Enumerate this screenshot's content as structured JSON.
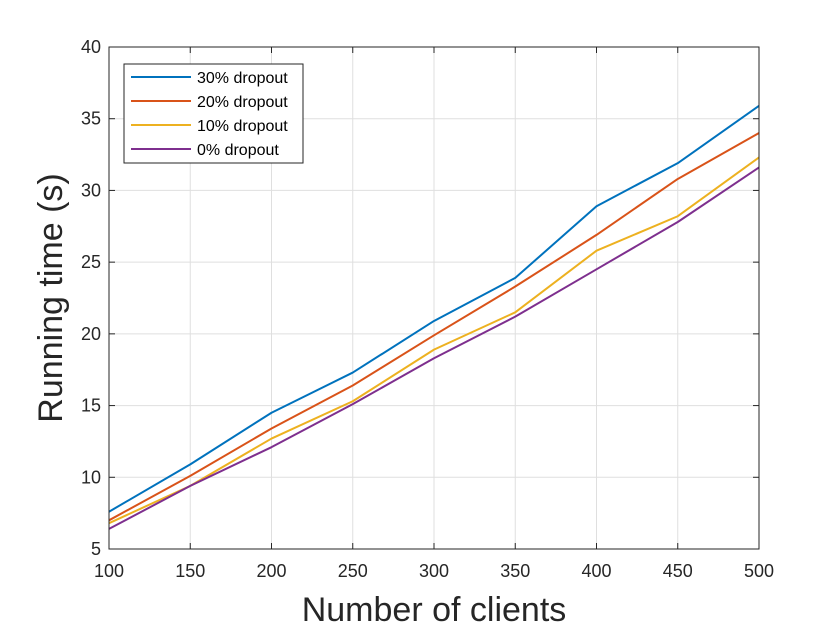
{
  "chart_data": {
    "type": "line",
    "title": "",
    "xlabel": "Number of clients",
    "ylabel": "Running time (s)",
    "x": [
      100,
      150,
      200,
      250,
      300,
      350,
      400,
      450,
      500
    ],
    "xlim": [
      100,
      500
    ],
    "ylim": [
      5,
      40
    ],
    "xticks": [
      "100",
      "150",
      "200",
      "250",
      "300",
      "350",
      "400",
      "450",
      "500"
    ],
    "yticks": [
      "5",
      "10",
      "15",
      "20",
      "25",
      "30",
      "35",
      "40"
    ],
    "grid": true,
    "legend_position": "top-left",
    "series": [
      {
        "name": "30% dropout",
        "color": "#0072BD",
        "values": [
          7.6,
          10.9,
          14.5,
          17.3,
          20.9,
          23.9,
          28.9,
          31.9,
          35.9
        ]
      },
      {
        "name": "20% dropout",
        "color": "#D95319",
        "values": [
          7.0,
          10.1,
          13.4,
          16.4,
          19.9,
          23.3,
          26.9,
          30.8,
          34.0
        ]
      },
      {
        "name": "10% dropout",
        "color": "#EDB120",
        "values": [
          6.8,
          9.4,
          12.7,
          15.3,
          18.9,
          21.5,
          25.8,
          28.2,
          32.3
        ]
      },
      {
        "name": "0% dropout",
        "color": "#7E2F8E",
        "values": [
          6.4,
          9.4,
          12.1,
          15.1,
          18.3,
          21.2,
          24.5,
          27.8,
          31.6
        ]
      }
    ]
  }
}
